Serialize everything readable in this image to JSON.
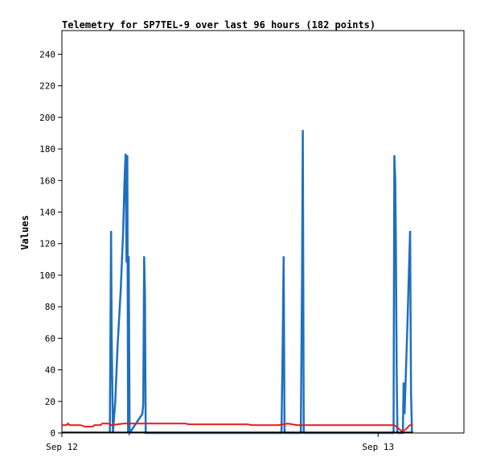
{
  "chart_data": {
    "type": "line",
    "title": "Telemetry for SP7TEL-9 over last 96 hours (182 points)",
    "xlabel": "",
    "ylabel": "Values",
    "x_unit": "hours",
    "xlim": [
      0,
      26
    ],
    "ylim": [
      0,
      255
    ],
    "y_ticks": [
      0,
      20,
      40,
      60,
      80,
      100,
      120,
      140,
      160,
      180,
      200,
      220,
      240
    ],
    "x_ticks": [
      {
        "x": 0,
        "label": "Sep 12"
      },
      {
        "x": 20.45,
        "label": "Sep 13"
      }
    ],
    "grid": false,
    "series": [
      {
        "name": "",
        "color": "#1f6fbf",
        "points": [
          [
            3.1,
            0
          ],
          [
            3.14,
            65
          ],
          [
            3.18,
            128
          ],
          [
            3.22,
            60
          ],
          [
            3.3,
            0
          ],
          [
            3.45,
            20
          ],
          [
            3.6,
            55
          ],
          [
            3.8,
            90
          ],
          [
            3.95,
            125
          ],
          [
            4.05,
            160
          ],
          [
            4.12,
            177
          ],
          [
            4.18,
            108
          ],
          [
            4.23,
            176
          ],
          [
            4.28,
            0
          ],
          [
            4.32,
            112
          ],
          [
            4.38,
            0
          ],
          [
            5.2,
            12
          ],
          [
            5.26,
            18
          ],
          [
            5.32,
            112
          ],
          [
            5.37,
            88
          ],
          [
            5.42,
            0
          ],
          [
            14.2,
            0
          ],
          [
            14.28,
            57
          ],
          [
            14.34,
            112
          ],
          [
            14.4,
            0
          ],
          [
            15.45,
            0
          ],
          [
            15.53,
            97
          ],
          [
            15.58,
            192
          ],
          [
            15.64,
            0
          ],
          [
            21.45,
            0
          ],
          [
            21.5,
            176
          ],
          [
            21.56,
            160
          ],
          [
            21.6,
            120
          ],
          [
            21.65,
            40
          ],
          [
            21.7,
            0
          ],
          [
            22.05,
            0
          ],
          [
            22.1,
            32
          ],
          [
            22.16,
            12
          ],
          [
            22.22,
            30
          ],
          [
            22.35,
            70
          ],
          [
            22.45,
            105
          ],
          [
            22.52,
            128
          ],
          [
            22.58,
            25
          ],
          [
            22.64,
            0
          ]
        ]
      },
      {
        "name": "",
        "color": "#e21d1d",
        "points": [
          [
            0,
            5
          ],
          [
            0.3,
            5
          ],
          [
            0.4,
            6
          ],
          [
            0.5,
            5
          ],
          [
            1.2,
            5
          ],
          [
            1.5,
            4
          ],
          [
            2.0,
            4
          ],
          [
            2.1,
            5
          ],
          [
            2.5,
            5
          ],
          [
            2.6,
            6
          ],
          [
            3.0,
            6
          ],
          [
            3.2,
            5
          ],
          [
            4.0,
            6
          ],
          [
            4.2,
            6
          ],
          [
            8.0,
            6
          ],
          [
            8.2,
            5.5
          ],
          [
            12.0,
            5.5
          ],
          [
            12.3,
            5
          ],
          [
            14.0,
            5
          ],
          [
            14.6,
            6
          ],
          [
            15.2,
            5
          ],
          [
            21.5,
            5
          ],
          [
            22.0,
            1
          ],
          [
            22.2,
            2
          ],
          [
            22.5,
            5
          ],
          [
            22.7,
            5
          ]
        ]
      },
      {
        "name": "",
        "color": "#000000",
        "points": [
          [
            0,
            0.3
          ],
          [
            22.7,
            0.3
          ]
        ]
      }
    ]
  }
}
